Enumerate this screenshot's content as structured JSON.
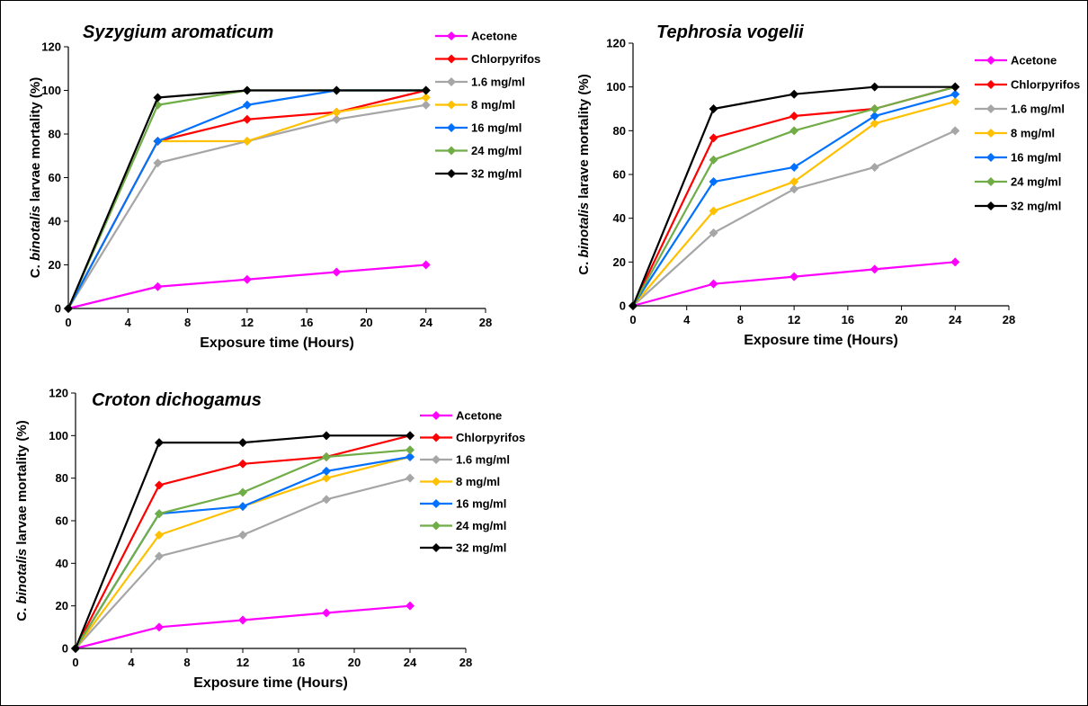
{
  "chart_data": [
    {
      "type": "line",
      "title": "Syzygium aromaticum",
      "xlabel": "Exposure time (Hours)",
      "ylabel_parts": [
        "C. ",
        "binotalis",
        " larvae mortality (%)"
      ],
      "xlim": [
        0,
        28
      ],
      "ylim": [
        0,
        120
      ],
      "xticks": [
        0,
        4,
        8,
        12,
        16,
        20,
        24,
        28
      ],
      "yticks": [
        0,
        20,
        40,
        60,
        80,
        100,
        120
      ],
      "x": [
        0,
        6,
        12,
        18,
        24
      ],
      "legend_position": "right",
      "series": [
        {
          "name": "Acetone",
          "color": "#FF00FF",
          "values": [
            0,
            10,
            13.3,
            16.7,
            20
          ]
        },
        {
          "name": "Chlorpyrifos",
          "color": "#FF0000",
          "values": [
            0,
            76.7,
            86.7,
            90,
            100
          ]
        },
        {
          "name": "1.6 mg/ml",
          "color": "#A6A6A6",
          "values": [
            0,
            66.7,
            76.7,
            86.7,
            93.3
          ]
        },
        {
          "name": "8 mg/ml",
          "color": "#FFC000",
          "values": [
            0,
            76.7,
            76.7,
            90,
            96.7
          ]
        },
        {
          "name": "16 mg/ml",
          "color": "#0070FF",
          "values": [
            0,
            76.7,
            93.3,
            100,
            100
          ]
        },
        {
          "name": "24 mg/ml",
          "color": "#70AD47",
          "values": [
            0,
            93.3,
            100,
            100,
            100
          ]
        },
        {
          "name": "32 mg/ml",
          "color": "#000000",
          "values": [
            0,
            96.7,
            100,
            100,
            100
          ]
        }
      ]
    },
    {
      "type": "line",
      "title": "Tephrosia vogelii",
      "xlabel": "Exposure time (Hours)",
      "ylabel_parts": [
        "C. ",
        "binotalis",
        " larave mortality (%)"
      ],
      "xlim": [
        0,
        28
      ],
      "ylim": [
        0,
        120
      ],
      "xticks": [
        0,
        4,
        8,
        12,
        16,
        20,
        24,
        28
      ],
      "yticks": [
        0,
        20,
        40,
        60,
        80,
        100,
        120
      ],
      "x": [
        0,
        6,
        12,
        18,
        24
      ],
      "legend_position": "right",
      "series": [
        {
          "name": "Acetone",
          "color": "#FF00FF",
          "values": [
            0,
            10,
            13.3,
            16.7,
            20
          ]
        },
        {
          "name": "Chlorpyrifos",
          "color": "#FF0000",
          "values": [
            0,
            76.7,
            86.7,
            90,
            100
          ]
        },
        {
          "name": "1.6 mg/ml",
          "color": "#A6A6A6",
          "values": [
            0,
            33.3,
            53.3,
            63.3,
            80
          ]
        },
        {
          "name": "8 mg/ml",
          "color": "#FFC000",
          "values": [
            0,
            43.3,
            56.7,
            83.3,
            93.3
          ]
        },
        {
          "name": "16 mg/ml",
          "color": "#0070FF",
          "values": [
            0,
            56.7,
            63.3,
            86.7,
            96.7
          ]
        },
        {
          "name": "24 mg/ml",
          "color": "#70AD47",
          "values": [
            0,
            66.7,
            80,
            90,
            100
          ]
        },
        {
          "name": "32 mg/ml",
          "color": "#000000",
          "values": [
            0,
            90,
            96.7,
            100,
            100
          ]
        }
      ]
    },
    {
      "type": "line",
      "title": "Croton dichogamus",
      "xlabel": "Exposure time (Hours)",
      "ylabel_parts": [
        "C. ",
        "binotalis",
        " larvae mortality (%)"
      ],
      "xlim": [
        0,
        28
      ],
      "ylim": [
        0,
        120
      ],
      "xticks": [
        0,
        4,
        8,
        12,
        16,
        20,
        24,
        28
      ],
      "yticks": [
        0,
        20,
        40,
        60,
        80,
        100,
        120
      ],
      "x": [
        0,
        6,
        12,
        18,
        24
      ],
      "legend_position": "right",
      "series": [
        {
          "name": "Acetone",
          "color": "#FF00FF",
          "values": [
            0,
            10,
            13.3,
            16.7,
            20
          ]
        },
        {
          "name": "Chlorpyrifos",
          "color": "#FF0000",
          "values": [
            0,
            76.7,
            86.7,
            90,
            100
          ]
        },
        {
          "name": "1.6 mg/ml",
          "color": "#A6A6A6",
          "values": [
            0,
            43.3,
            53.3,
            70,
            80
          ]
        },
        {
          "name": "8 mg/ml",
          "color": "#FFC000",
          "values": [
            0,
            53.3,
            66.7,
            80,
            90
          ]
        },
        {
          "name": "16 mg/ml",
          "color": "#0070FF",
          "values": [
            0,
            63.3,
            66.7,
            83.3,
            90
          ]
        },
        {
          "name": "24 mg/ml",
          "color": "#70AD47",
          "values": [
            0,
            63.3,
            73.3,
            90,
            93.3
          ]
        },
        {
          "name": "32 mg/ml",
          "color": "#000000",
          "values": [
            0,
            96.7,
            96.7,
            100,
            100
          ]
        }
      ]
    }
  ]
}
